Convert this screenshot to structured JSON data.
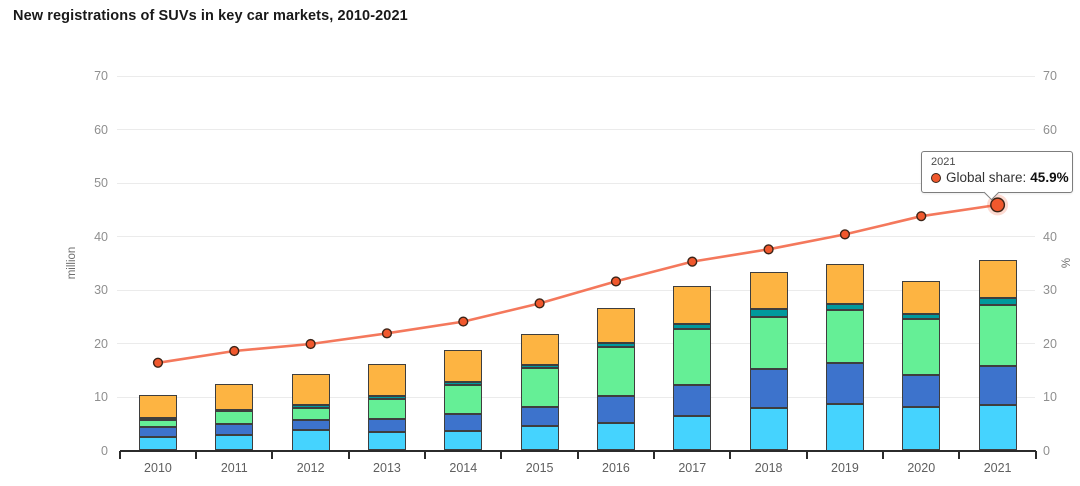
{
  "title": "New registrations of SUVs in key car markets, 2010-2021",
  "tooltip": {
    "year": "2021",
    "label": "Global share:",
    "value": "45.9%"
  },
  "chart_data": {
    "type": "bar+line",
    "title": "New registrations of SUVs in key car markets, 2010-2021",
    "categories": [
      "2010",
      "2011",
      "2012",
      "2013",
      "2014",
      "2015",
      "2016",
      "2017",
      "2018",
      "2019",
      "2020",
      "2021"
    ],
    "bar_series": [
      {
        "name": "cyan-segment",
        "color": "#45D3FE",
        "values": [
          2.6,
          2.9,
          3.75,
          3.4,
          3.6,
          4.5,
          5.1,
          6.4,
          7.9,
          8.75,
          8.2,
          8.5
        ]
      },
      {
        "name": "blue-segment",
        "color": "#3D73CC",
        "values": [
          1.7,
          2.0,
          2.0,
          2.5,
          3.3,
          3.7,
          5.0,
          5.8,
          7.3,
          7.65,
          5.9,
          7.3
        ]
      },
      {
        "name": "green-segment",
        "color": "#65EF96",
        "values": [
          1.45,
          2.4,
          2.25,
          3.75,
          5.3,
          7.2,
          9.2,
          10.5,
          9.8,
          9.8,
          10.5,
          11.4
        ]
      },
      {
        "name": "teal-segment",
        "color": "#00999C",
        "values": [
          0.25,
          0.35,
          0.5,
          0.55,
          0.6,
          0.65,
          0.8,
          1.0,
          1.4,
          1.2,
          0.9,
          1.3
        ]
      },
      {
        "name": "orange-segment",
        "color": "#FDB442",
        "values": [
          4.3,
          4.85,
          5.8,
          5.9,
          5.9,
          5.65,
          6.5,
          7.1,
          7.0,
          7.4,
          6.2,
          7.1
        ]
      }
    ],
    "bar_totals": [
      10.3,
      12.5,
      14.3,
      16.1,
      18.7,
      21.7,
      26.6,
      30.8,
      33.4,
      34.8,
      31.7,
      35.6
    ],
    "line_series": {
      "name": "Global share",
      "color": "#F4785C",
      "marker_color": "#F0582D",
      "marker_stroke": "#3c2417",
      "values": [
        16.4,
        18.6,
        19.9,
        21.9,
        24.1,
        27.5,
        31.6,
        35.3,
        37.6,
        40.4,
        43.8,
        45.9
      ],
      "highlight_index": 11
    },
    "y_left": {
      "label": "million",
      "min": 0,
      "max": 70,
      "ticks": [
        0,
        10,
        20,
        30,
        40,
        50,
        60,
        70
      ]
    },
    "y_right": {
      "label": "%",
      "min": 0,
      "max": 70,
      "ticks": [
        0,
        10,
        20,
        30,
        40,
        50,
        60,
        70
      ]
    },
    "grid": true,
    "legend": "none",
    "colors": {
      "grid": "#ebebeb",
      "axis": "#2b2b2b",
      "tick_label": "#8f8f8f",
      "x_label": "#5f5f5f"
    }
  }
}
